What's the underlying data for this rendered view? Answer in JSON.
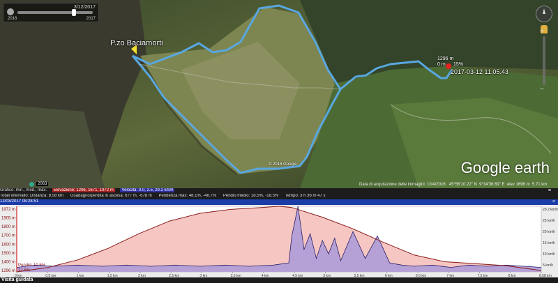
{
  "timeslider": {
    "date": "3/12/2017",
    "start": "2016",
    "end": "2017"
  },
  "map": {
    "place_label": "P.zo Baciamorti",
    "marker_elev": "1296 m",
    "marker_dist": "0 m",
    "marker_grade": "15%",
    "timestamp": "2017-03-12 11.05.43",
    "trail_label": "© 2016 Google",
    "logo_google": "Google",
    "logo_earth": "earth",
    "status": {
      "imagery": "Data di acquisizione delle immagini: 10/4/2016",
      "lat": "45°56'10.22\" N",
      "lon": "9°34'36.69\" E",
      "elev": "elev 1696 m",
      "eye": "5.71 km"
    },
    "badge": "2063"
  },
  "profile_header": {
    "row1": [
      "Grafico: min., med., max.",
      "Elevazione: 1296, 1671, 1972 m",
      "Velocità: 0.0, 2.5, 29.2 km/h",
      "≡"
    ],
    "row2": [
      "Totali intervallo: Distanza: 8.58 km",
      "Guadagno/perdita in ascesa: 677 m, -678 m",
      "Pendenza max: 48.1%, -48.7%",
      "Pendio medio: 18.5%, -18.5%",
      "Tempo: 3 h 36 m 47 s"
    ],
    "selected": "12/03/2017 08:28:51",
    "close": "×"
  },
  "profile_footer": {
    "tour_label": "Visita guidata"
  },
  "chart_data": {
    "type": "area",
    "title": "",
    "xlabel": "",
    "ylabel": "",
    "elevation_axis_ticks": [
      "1972 m",
      "1905 m",
      "1800 m",
      "1700 m",
      "1600 m",
      "1500 m",
      "1400 m",
      "1296 m"
    ],
    "speed_axis_ticks": [
      "29.2 km/h",
      "25 km/h",
      "20 km/h",
      "15 km/h",
      "10 km/h",
      "5 km/h"
    ],
    "x_ticks": [
      "0 km",
      "0.5 km",
      "1 km",
      "1.5 km",
      "2 km",
      "2.5 km",
      "3 km",
      "3.5 km",
      "4 km",
      "4.5 km",
      "5 km",
      "5.5 km",
      "6 km",
      "6.5 km",
      "7 km",
      "7.5 km",
      "8 km",
      "8.58 km"
    ],
    "cursor_labels": {
      "grade": "Pendio: 10.5%",
      "grade_neg": "17.5%",
      "elev_start": "1296 m"
    },
    "x_km": [
      0,
      0.5,
      1,
      1.5,
      2,
      2.5,
      3,
      3.5,
      4,
      4.3,
      4.5,
      5,
      5.5,
      6,
      6.5,
      7,
      7.5,
      8,
      8.58
    ],
    "elevation_m": [
      1296,
      1340,
      1420,
      1540,
      1690,
      1820,
      1900,
      1940,
      1960,
      1972,
      1960,
      1860,
      1740,
      1600,
      1470,
      1400,
      1380,
      1360,
      1310
    ],
    "ylim_elev": [
      1296,
      1972
    ],
    "speed_x_km": [
      0,
      0.3,
      0.6,
      1,
      1.4,
      1.8,
      2.2,
      2.6,
      3,
      3.4,
      3.8,
      4.2,
      4.45,
      4.5,
      4.6,
      4.7,
      4.8,
      4.9,
      5,
      5.1,
      5.2,
      5.3,
      5.5,
      5.7,
      5.9,
      6.1,
      6.3,
      6.5,
      6.8,
      7.1,
      7.4,
      7.7,
      8,
      8.3,
      8.58
    ],
    "speed_kmh": [
      2,
      3,
      2.5,
      3,
      2.5,
      3,
      2.5,
      3,
      2.5,
      3,
      2.5,
      3,
      4,
      16,
      29.2,
      10,
      17,
      6,
      14,
      8,
      15,
      5,
      18,
      6,
      16,
      4,
      3,
      2.5,
      3,
      2,
      3,
      2.5,
      3,
      2.5,
      2
    ],
    "ylim_speed": [
      0,
      29.2
    ],
    "colors": {
      "elevation_fill": "#f6c7c2",
      "elevation_line": "#8a1a1a",
      "speed_fill": "#a99ad8",
      "speed_line": "#2a1d6a"
    }
  }
}
